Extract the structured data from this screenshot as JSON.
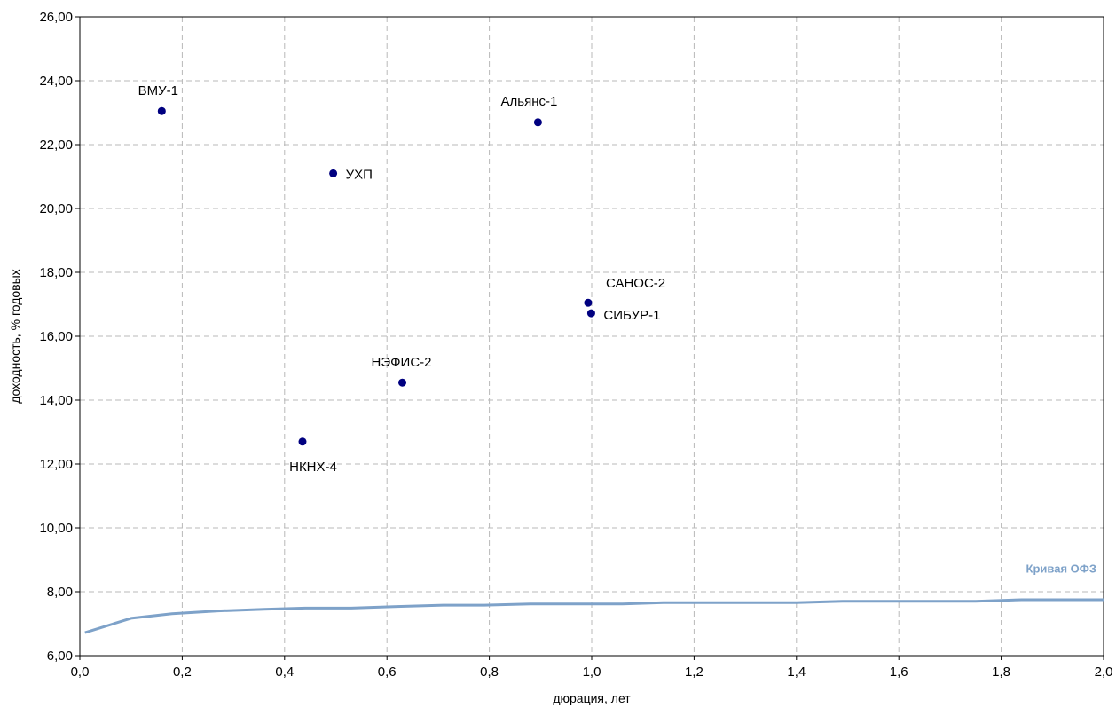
{
  "chart_data": {
    "type": "scatter",
    "xlabel": "дюрация, лет",
    "ylabel": "доходность, % годовых",
    "xlim": [
      0,
      2
    ],
    "ylim": [
      6,
      26
    ],
    "x_ticks": [
      "0,0",
      "0,2",
      "0,4",
      "0,6",
      "0,8",
      "1,0",
      "1,2",
      "1,4",
      "1,6",
      "1,8",
      "2,0"
    ],
    "y_ticks": [
      "6,00",
      "8,00",
      "10,00",
      "12,00",
      "14,00",
      "16,00",
      "18,00",
      "20,00",
      "22,00",
      "24,00",
      "26,00"
    ],
    "grid": true,
    "points": [
      {
        "label": "ВМУ-1",
        "x": 0.16,
        "y": 23.05
      },
      {
        "label": "УХП",
        "x": 0.495,
        "y": 21.1
      },
      {
        "label": "НКНХ-4",
        "x": 0.435,
        "y": 12.7
      },
      {
        "label": "НЭФИС-2",
        "x": 0.63,
        "y": 14.55
      },
      {
        "label": "Альянс-1",
        "x": 0.895,
        "y": 22.7
      },
      {
        "label": "САНОС-2",
        "x": 0.993,
        "y": 17.05
      },
      {
        "label": "СИБУР-1",
        "x": 0.999,
        "y": 16.72
      }
    ],
    "series": [
      {
        "name": "Кривая ОФЗ",
        "type": "line",
        "color": "#7ea2c9",
        "x": [
          0.01,
          0.1,
          0.18,
          0.27,
          0.36,
          0.44,
          0.53,
          0.62,
          0.71,
          0.79,
          0.88,
          0.97,
          1.06,
          1.14,
          1.23,
          1.32,
          1.4,
          1.49,
          1.58,
          1.66,
          1.75,
          1.84,
          1.92,
          2.0
        ],
        "y": [
          6.72,
          7.17,
          7.31,
          7.4,
          7.45,
          7.49,
          7.49,
          7.54,
          7.58,
          7.58,
          7.62,
          7.62,
          7.62,
          7.66,
          7.66,
          7.66,
          7.66,
          7.7,
          7.7,
          7.7,
          7.7,
          7.75,
          7.75,
          7.75
        ]
      }
    ],
    "point_color": "#000080"
  }
}
